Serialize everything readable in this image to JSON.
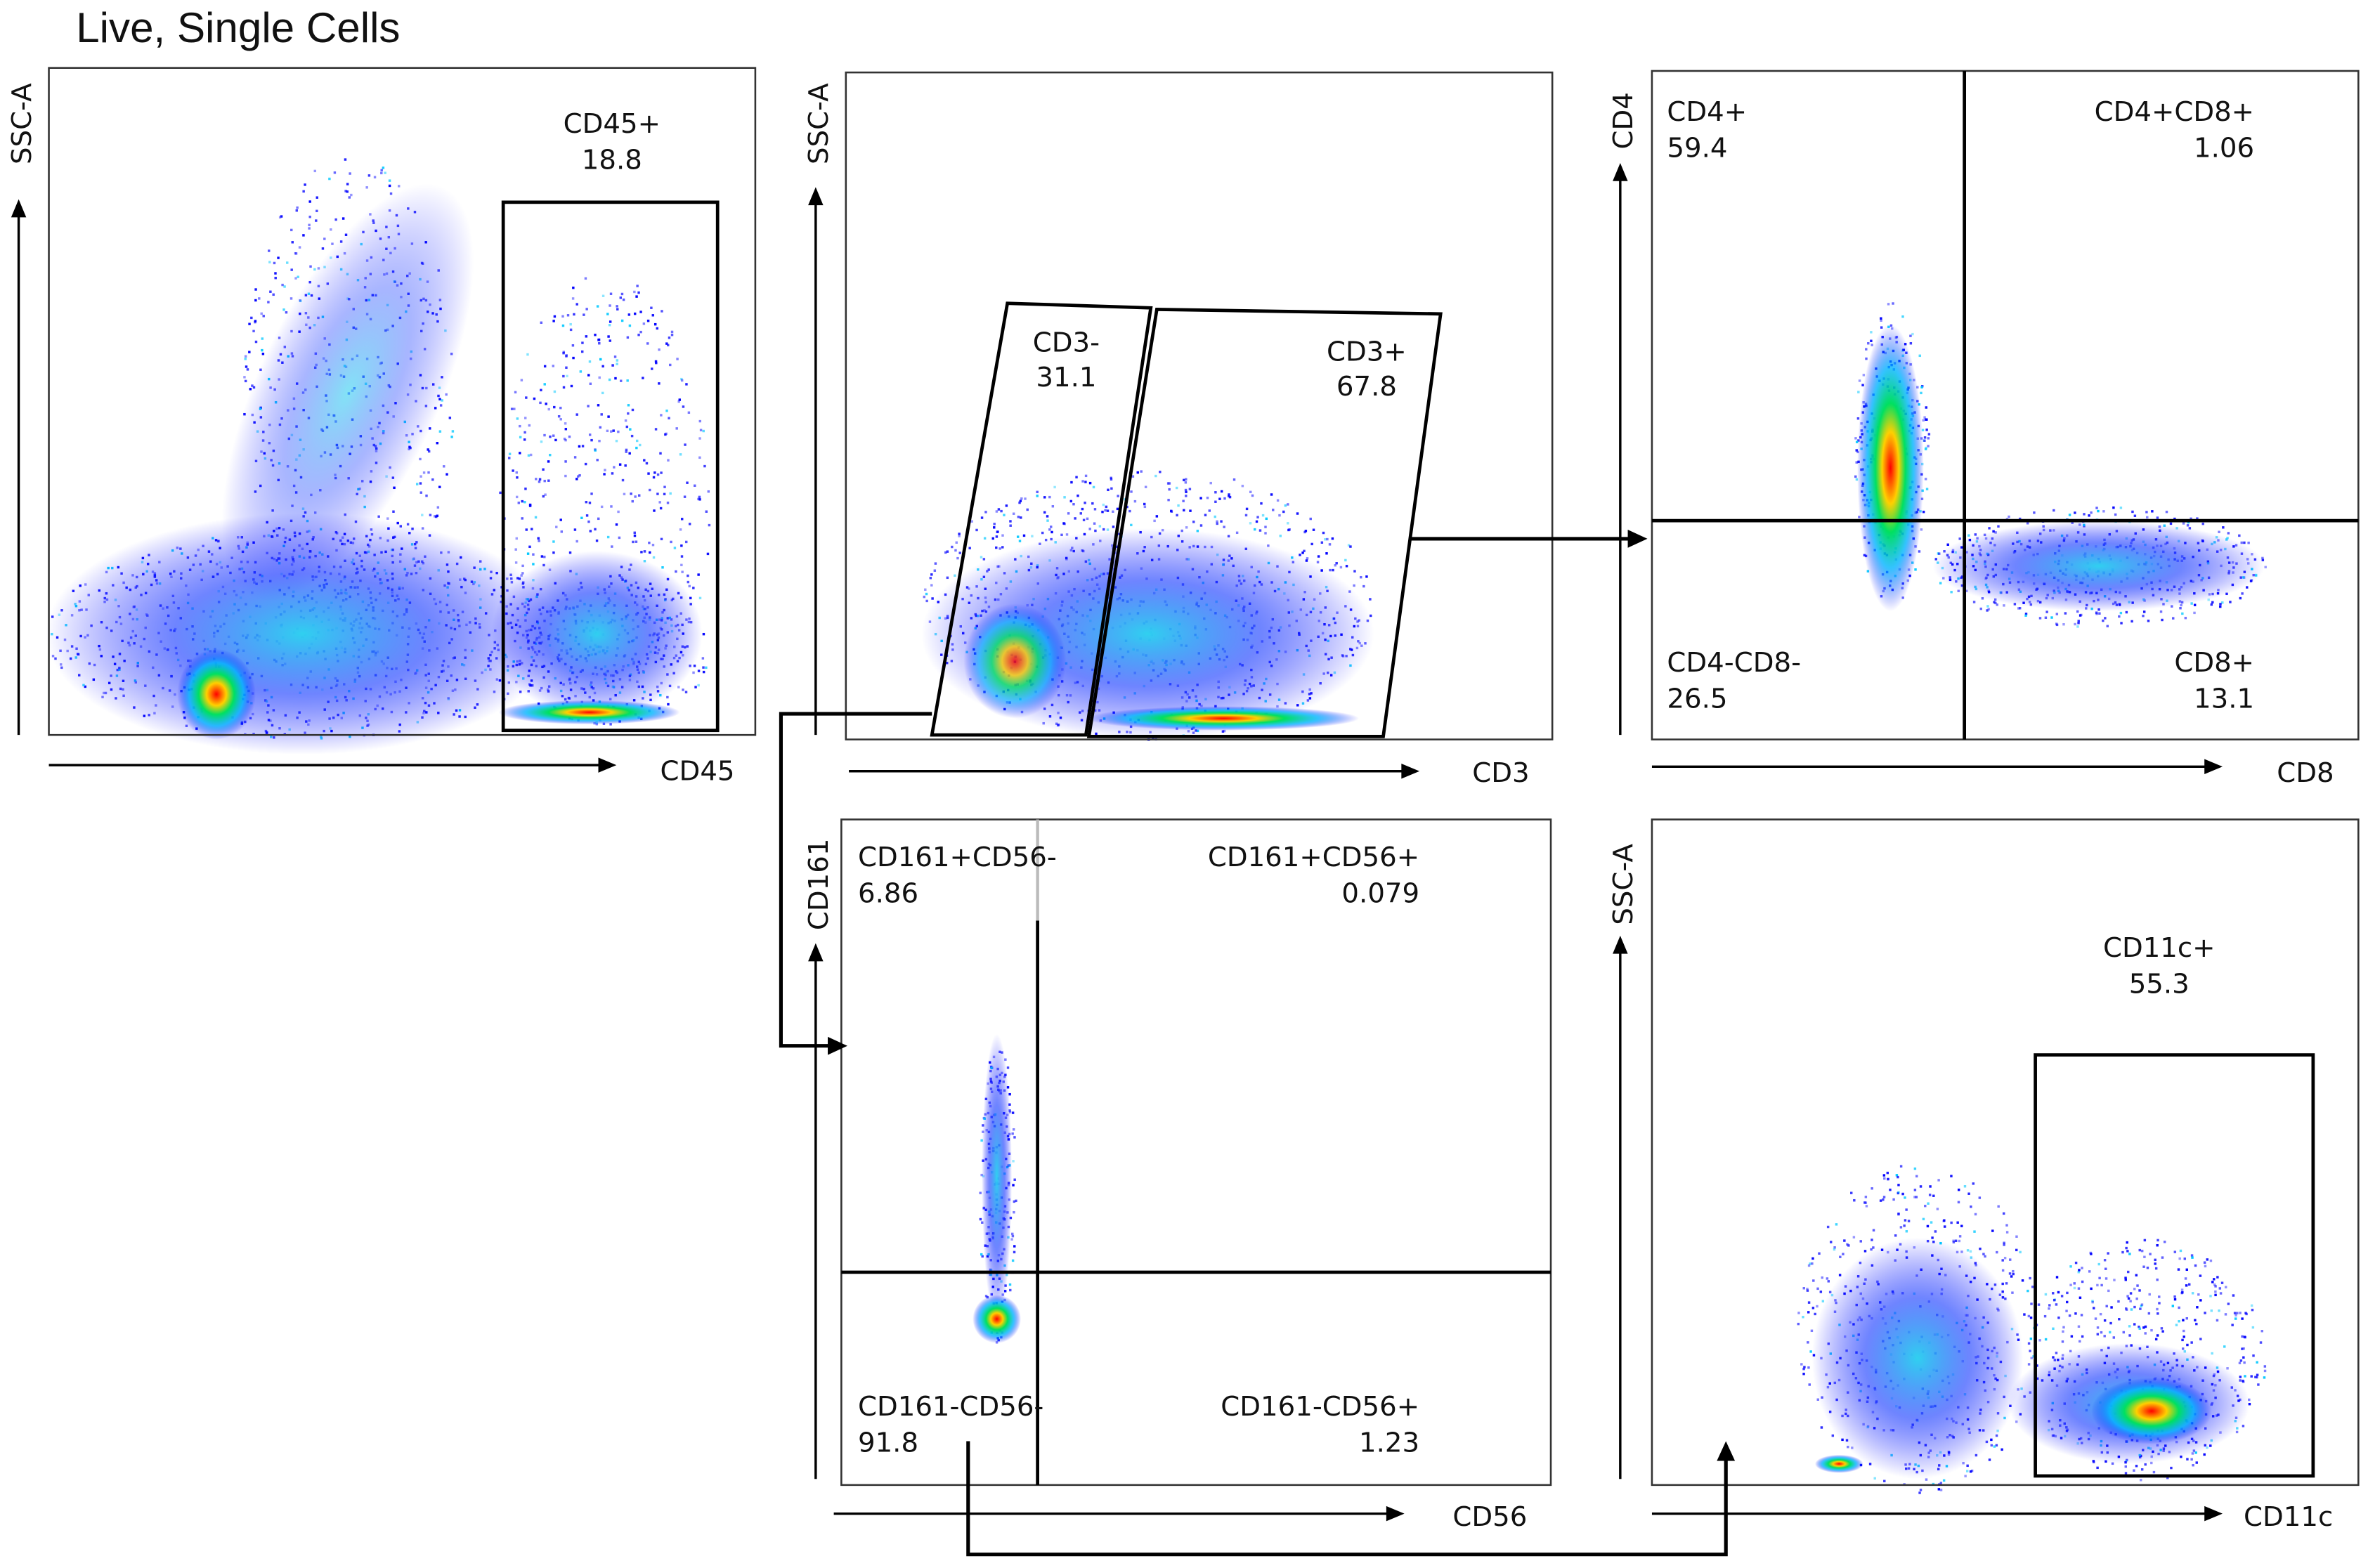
{
  "title": "Live, Single Cells",
  "panels": [
    {
      "id": "cd45",
      "x_label": "CD45",
      "y_label": "SSC-A",
      "gates": [
        {
          "name": "CD45+",
          "value": "18.8"
        }
      ]
    },
    {
      "id": "cd3",
      "x_label": "CD3",
      "y_label": "SSC-A",
      "gates": [
        {
          "name": "CD3-",
          "value": "31.1"
        },
        {
          "name": "CD3+",
          "value": "67.8"
        }
      ]
    },
    {
      "id": "cd4cd8",
      "x_label": "CD8",
      "y_label": "CD4",
      "gates": [
        {
          "name": "CD4+",
          "value": "59.4"
        },
        {
          "name": "CD4+CD8+",
          "value": "1.06"
        },
        {
          "name": "CD4-CD8-",
          "value": "26.5"
        },
        {
          "name": "CD8+",
          "value": "13.1"
        }
      ]
    },
    {
      "id": "cd161cd56",
      "x_label": "CD56",
      "y_label": "CD161",
      "gates": [
        {
          "name": "CD161+CD56-",
          "value": "6.86"
        },
        {
          "name": "CD161+CD56+",
          "value": "0.079"
        },
        {
          "name": "CD161-CD56-",
          "value": "91.8"
        },
        {
          "name": "CD161-CD56+",
          "value": "1.23"
        }
      ]
    },
    {
      "id": "cd11c",
      "x_label": "CD11c",
      "y_label": "SSC-A",
      "gates": [
        {
          "name": "CD11c+",
          "value": "55.3"
        }
      ]
    }
  ],
  "density_colors": [
    "#0000ff",
    "#00c8ff",
    "#00e060",
    "#ffe000",
    "#ff0000"
  ]
}
